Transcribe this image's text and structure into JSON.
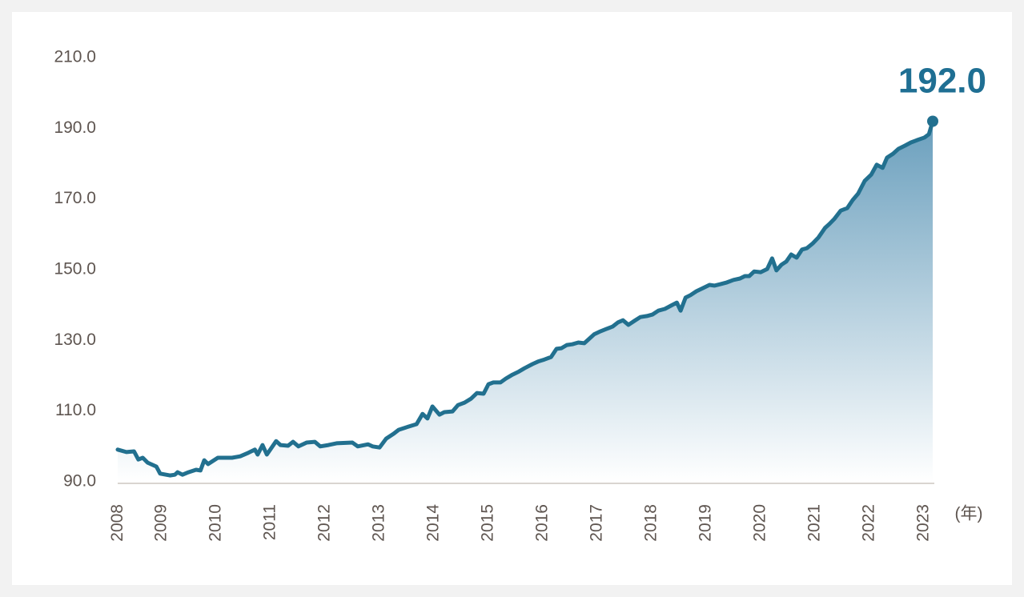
{
  "chart_data": {
    "type": "area",
    "x": [
      2008.19,
      2008.35,
      2008.49,
      2008.57,
      2008.65,
      2008.74,
      2008.9,
      2008.97,
      2009.15,
      2009.24,
      2009.29,
      2009.38,
      2009.49,
      2009.63,
      2009.71,
      2009.78,
      2009.85,
      2010.03,
      2010.29,
      2010.44,
      2010.59,
      2010.71,
      2010.76,
      2010.85,
      2010.93,
      2011.1,
      2011.18,
      2011.32,
      2011.41,
      2011.51,
      2011.66,
      2011.81,
      2011.91,
      2012.06,
      2012.21,
      2012.5,
      2012.6,
      2012.79,
      2012.87,
      2013.0,
      2013.12,
      2013.26,
      2013.35,
      2013.53,
      2013.68,
      2013.79,
      2013.88,
      2013.97,
      2014.1,
      2014.19,
      2014.34,
      2014.44,
      2014.56,
      2014.68,
      2014.79,
      2014.91,
      2015.0,
      2015.09,
      2015.22,
      2015.32,
      2015.44,
      2015.56,
      2015.66,
      2015.81,
      2015.91,
      2016.03,
      2016.15,
      2016.25,
      2016.34,
      2016.44,
      2016.54,
      2016.65,
      2016.76,
      2016.84,
      2016.94,
      2017.06,
      2017.16,
      2017.28,
      2017.38,
      2017.47,
      2017.57,
      2017.68,
      2017.79,
      2017.91,
      2018.01,
      2018.12,
      2018.24,
      2018.35,
      2018.46,
      2018.53,
      2018.62,
      2018.71,
      2018.82,
      2018.94,
      2019.06,
      2019.15,
      2019.26,
      2019.38,
      2019.5,
      2019.62,
      2019.71,
      2019.79,
      2019.88,
      2020.0,
      2020.12,
      2020.21,
      2020.29,
      2020.38,
      2020.47,
      2020.56,
      2020.66,
      2020.76,
      2020.85,
      2020.96,
      2021.06,
      2021.18,
      2021.26,
      2021.35,
      2021.47,
      2021.59,
      2021.69,
      2021.79,
      2021.91,
      2022.03,
      2022.13,
      2022.24,
      2022.32,
      2022.43,
      2022.53,
      2022.65,
      2022.76,
      2022.88,
      2023.01,
      2023.09,
      2023.16
    ],
    "values": [
      99.1,
      98.4,
      98.6,
      96.3,
      96.8,
      95.4,
      94.3,
      92.3,
      91.8,
      92.0,
      92.7,
      92.0,
      92.7,
      93.4,
      93.2,
      96.1,
      95.0,
      96.8,
      96.8,
      97.2,
      98.2,
      99.1,
      97.7,
      100.4,
      97.7,
      101.5,
      100.4,
      100.2,
      101.3,
      100.0,
      101.1,
      101.3,
      100.0,
      100.4,
      100.9,
      101.1,
      100.0,
      100.6,
      100.0,
      99.7,
      102.2,
      103.6,
      104.7,
      105.6,
      106.3,
      109.2,
      107.9,
      111.3,
      109.0,
      109.7,
      109.9,
      111.7,
      112.4,
      113.5,
      115.1,
      114.9,
      117.6,
      118.1,
      118.1,
      119.2,
      120.3,
      121.2,
      122.1,
      123.3,
      124.0,
      124.6,
      125.3,
      127.6,
      127.8,
      128.7,
      128.9,
      129.4,
      129.2,
      130.3,
      131.7,
      132.6,
      133.2,
      133.9,
      135.1,
      135.7,
      134.4,
      135.5,
      136.6,
      136.9,
      137.3,
      138.4,
      138.9,
      139.8,
      140.7,
      138.4,
      142.1,
      142.8,
      143.9,
      144.8,
      145.7,
      145.5,
      145.9,
      146.4,
      147.1,
      147.5,
      148.2,
      148.2,
      149.5,
      149.3,
      150.2,
      153.2,
      149.8,
      151.4,
      152.3,
      154.3,
      153.4,
      155.7,
      156.1,
      157.5,
      159.1,
      161.8,
      162.9,
      164.3,
      166.7,
      167.4,
      169.7,
      171.5,
      175.1,
      176.9,
      179.7,
      178.8,
      181.7,
      182.8,
      184.2,
      185.1,
      186.0,
      186.7,
      187.4,
      188.3,
      192.0
    ],
    "color": "#22708f",
    "end_label": "192.0",
    "x_unit": "(年)",
    "xlim": [
      2008.19,
      2023.16
    ],
    "xticks": [
      {
        "value": 2008.2,
        "label": "2008"
      },
      2009,
      2010,
      2011,
      2012,
      2013,
      2014,
      2015,
      2016,
      2017,
      2018,
      2019,
      2020,
      2021,
      2022,
      2023
    ],
    "ylim": [
      90,
      210
    ],
    "yticks": [
      {
        "value": 90,
        "label": "90.0"
      },
      {
        "value": 110,
        "label": "110.0"
      },
      {
        "value": 130,
        "label": "130.0"
      },
      {
        "value": 150,
        "label": "150.0"
      },
      {
        "value": 170,
        "label": "170.0"
      },
      {
        "value": 190,
        "label": "190.0"
      },
      {
        "value": 210,
        "label": "210.0"
      }
    ],
    "grid": false
  }
}
